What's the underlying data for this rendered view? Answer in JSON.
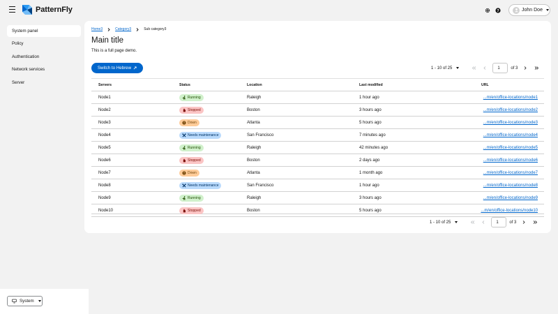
{
  "header": {
    "brand": "PatternFly",
    "user_name": "John Doe"
  },
  "sidebar": {
    "items": [
      {
        "label": "System panel",
        "active": true
      },
      {
        "label": "Policy"
      },
      {
        "label": "Authentication"
      },
      {
        "label": "Network services"
      },
      {
        "label": "Server"
      }
    ],
    "theme_label": "System"
  },
  "breadcrumb": [
    "Home3",
    "Category3",
    "Sub category3"
  ],
  "page": {
    "title": "Main title",
    "description": "This is a full page demo."
  },
  "toolbar": {
    "switch_label": "Switch to Hebrew"
  },
  "pagination": {
    "range_label": "1 - 10 of 25",
    "current_page": "1",
    "of_label": "of 3"
  },
  "table": {
    "columns": [
      "Servers",
      "Status",
      "Location",
      "Last modified",
      "URL"
    ],
    "rows": [
      {
        "server": "Node1",
        "status": "Running",
        "location": "Raleigh",
        "modified": "1 hour ago",
        "url": "...m/en/office-locations/node1"
      },
      {
        "server": "Node2",
        "status": "Stopped",
        "location": "Boston",
        "modified": "3 hours ago",
        "url": "...m/en/office-locations/node2"
      },
      {
        "server": "Node3",
        "status": "Down",
        "location": "Atlanta",
        "modified": "5 hours ago",
        "url": "...m/en/office-locations/node3"
      },
      {
        "server": "Node4",
        "status": "Needs maintenance",
        "location": "San Francisco",
        "modified": "7 minutes ago",
        "url": "...m/en/office-locations/node4"
      },
      {
        "server": "Node5",
        "status": "Running",
        "location": "Raleigh",
        "modified": "42 minutes ago",
        "url": "...m/en/office-locations/node5"
      },
      {
        "server": "Node6",
        "status": "Stopped",
        "location": "Boston",
        "modified": "2 days ago",
        "url": "...m/en/office-locations/node6"
      },
      {
        "server": "Node7",
        "status": "Down",
        "location": "Atlanta",
        "modified": "1 month ago",
        "url": "...m/en/office-locations/node7"
      },
      {
        "server": "Node8",
        "status": "Needs maintenance",
        "location": "San Francisco",
        "modified": "1 hour ago",
        "url": "...m/en/office-locations/node8"
      },
      {
        "server": "Node9",
        "status": "Running",
        "location": "Raleigh",
        "modified": "3 hours ago",
        "url": "...m/en/office-locations/node9"
      },
      {
        "server": "Node10",
        "status": "Stopped",
        "location": "Boston",
        "modified": "5 hours ago",
        "url": "...m/en/office-locations/node10"
      }
    ]
  },
  "status_styles": {
    "Running": {
      "bg": "#d1f1cc",
      "fg": "#204d00",
      "icon": "running-icon"
    },
    "Stopped": {
      "bg": "#fbc5c5",
      "fg": "#7d1007",
      "icon": "stopped-icon"
    },
    "Down": {
      "bg": "#ffcc99",
      "fg": "#73480b",
      "icon": "down-icon"
    },
    "Needs maintenance": {
      "bg": "#b9dafc",
      "fg": "#003366",
      "icon": "maintenance-icon"
    }
  },
  "colors": {
    "accent": "#0066cc",
    "page_bg": "#f2f2f2"
  }
}
